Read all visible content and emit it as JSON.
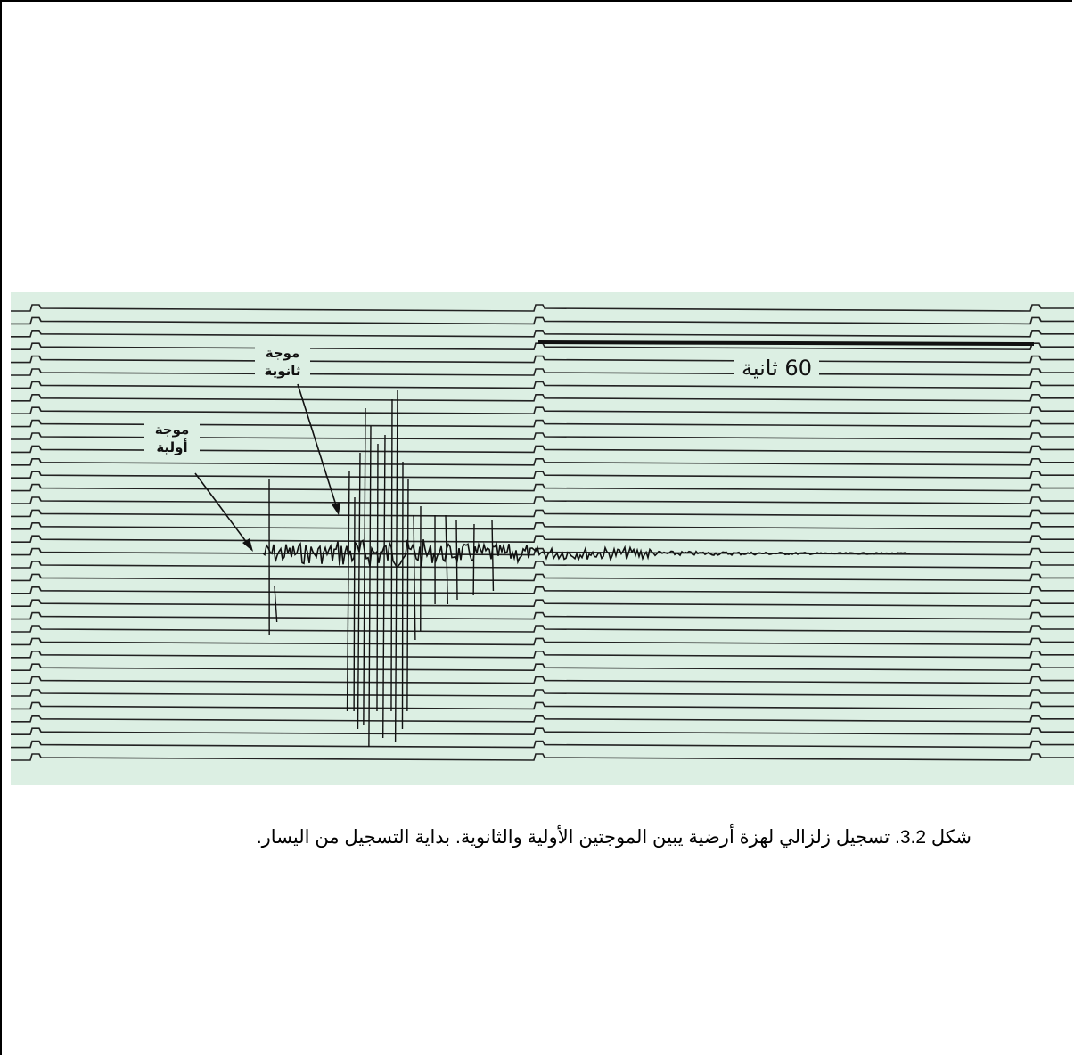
{
  "figure": {
    "primary_wave_label": "موجة أولية",
    "secondary_wave_label": "موجة ثانوية",
    "scale_label": "60 ثانية"
  },
  "caption": "شكل 3.2. تسجيل زلزالي لهزة أرضية يبين الموجتين الأولية والثانوية. بداية التسجيل من اليسار."
}
